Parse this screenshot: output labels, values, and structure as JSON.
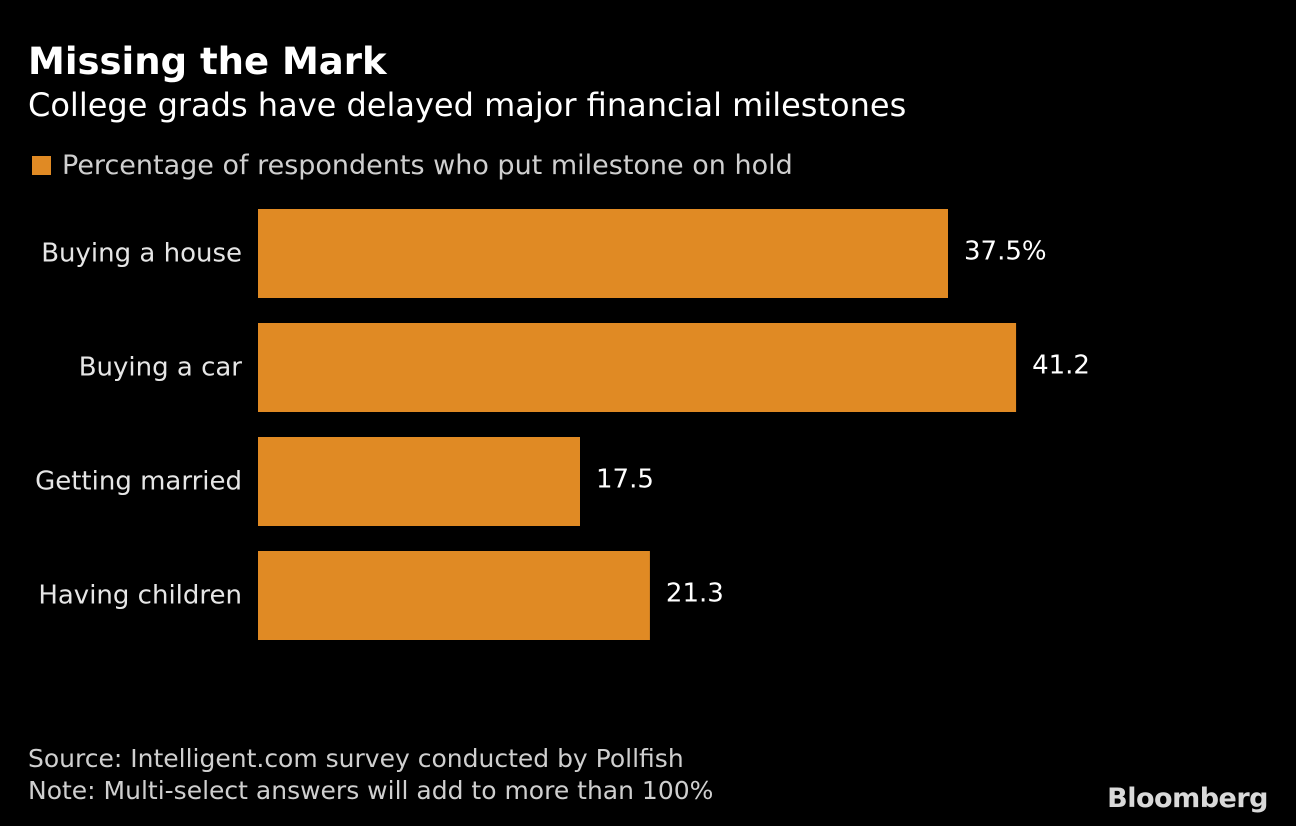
{
  "title": "Missing the Mark",
  "subtitle": "College grads have delayed major financial milestones",
  "legend": {
    "label": "Percentage of respondents who put milestone on hold"
  },
  "colors": {
    "bar": "#e08a24",
    "background": "#000000",
    "text": "#ffffff",
    "muted": "#cfcfcf"
  },
  "chart_data": {
    "type": "bar",
    "orientation": "horizontal",
    "categories": [
      "Buying a house",
      "Buying a car",
      "Getting married",
      "Having children"
    ],
    "series": [
      {
        "name": "Percentage of respondents who put milestone on hold",
        "values": [
          37.5,
          41.2,
          17.5,
          21.3
        ]
      }
    ],
    "data_labels": [
      "37.5%",
      "41.2",
      "17.5",
      "21.3"
    ],
    "xlim": [
      0,
      50
    ],
    "grid": false,
    "legend_position": "top-left"
  },
  "footer": {
    "source": "Source: Intelligent.com survey conducted by Pollfish",
    "note": "Note: Multi-select answers will add to more than 100%"
  },
  "logo": "Bloomberg"
}
